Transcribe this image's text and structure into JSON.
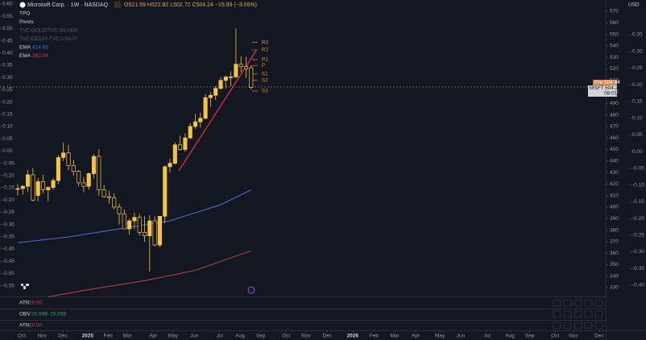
{
  "header": {
    "symbol": "Microsoft Corp. · 1W · NASDAQ",
    "ohlc": "O521.59 H522.82 L502.72 C504.24 −15.93 (−3.06%)",
    "currency": "USD"
  },
  "legend": [
    {
      "label": "TPO"
    },
    {
      "label": "Pivots"
    },
    {
      "label": "TVC:GOLD/TVC:SILVER"
    },
    {
      "label": "TVC:DE10Y-TVC:US10Y"
    },
    {
      "label": "EMA",
      "value": "414.93",
      "color": "#4f6fe0"
    },
    {
      "label": "EMA",
      "value": "362.04",
      "color": "#c8404f"
    }
  ],
  "price_tags": {
    "pre": "Pre 504.84",
    "symbol": "MSFT",
    "last": "504.24",
    "countdown": "08:01:07"
  },
  "panes": [
    {
      "label": "ATR",
      "value": "20.50"
    },
    {
      "label": "OBV",
      "value": "35.59B",
      "value2": "25.05B"
    },
    {
      "label": "ATR",
      "value": "20.50"
    }
  ],
  "chart_data": {
    "type": "candlestick",
    "up_color": "#f5c542",
    "down_color": "#f5c542",
    "ohlc": [
      [
        416,
        420,
        410,
        416
      ],
      [
        416,
        419,
        411,
        418
      ],
      [
        418,
        432,
        413,
        428
      ],
      [
        428,
        434,
        405,
        406
      ],
      [
        410,
        425,
        405,
        422
      ],
      [
        422,
        428,
        412,
        415
      ],
      [
        415,
        418,
        405,
        417
      ],
      [
        417,
        425,
        415,
        423
      ],
      [
        423,
        445,
        420,
        443
      ],
      [
        443,
        456,
        440,
        447
      ],
      [
        447,
        454,
        432,
        436
      ],
      [
        436,
        441,
        427,
        431
      ],
      [
        431,
        432,
        418,
        421
      ],
      [
        421,
        426,
        413,
        418
      ],
      [
        418,
        430,
        415,
        429
      ],
      [
        429,
        446,
        425,
        444
      ],
      [
        444,
        450,
        410,
        415
      ],
      [
        415,
        419,
        408,
        409
      ],
      [
        409,
        414,
        403,
        408
      ],
      [
        408,
        412,
        398,
        400
      ],
      [
        400,
        403,
        385,
        394
      ],
      [
        394,
        398,
        381,
        381
      ],
      [
        381,
        390,
        376,
        388
      ],
      [
        388,
        395,
        381,
        391
      ],
      [
        391,
        394,
        375,
        378
      ],
      [
        378,
        392,
        370,
        375
      ],
      [
        375,
        393,
        344,
        388
      ],
      [
        388,
        392,
        366,
        367
      ],
      [
        367,
        392,
        365,
        392
      ],
      [
        392,
        436,
        386,
        435
      ],
      [
        435,
        442,
        430,
        438
      ],
      [
        438,
        456,
        437,
        454
      ],
      [
        454,
        462,
        449,
        450
      ],
      [
        450,
        464,
        448,
        460
      ],
      [
        460,
        473,
        459,
        470
      ],
      [
        470,
        481,
        468,
        474
      ],
      [
        474,
        482,
        469,
        477
      ],
      [
        477,
        498,
        476,
        495
      ],
      [
        495,
        500,
        487,
        497
      ],
      [
        497,
        505,
        493,
        503
      ],
      [
        503,
        513,
        502,
        510
      ],
      [
        510,
        514,
        503,
        513
      ],
      [
        513,
        518,
        505,
        513
      ],
      [
        513,
        555,
        512,
        524
      ],
      [
        524,
        531,
        517,
        522
      ],
      [
        522,
        530,
        512,
        520
      ],
      [
        521,
        523,
        502,
        504
      ]
    ],
    "lines": [
      {
        "color": "#4f6fe0",
        "x": [
          0,
          10,
          20,
          30,
          40,
          46
        ],
        "values": [
          369,
          374,
          381,
          388,
          402,
          414.93
        ]
      },
      {
        "color": "#c8404f",
        "x": [
          6,
          15,
          25,
          35,
          46
        ],
        "values": [
          322,
          329,
          336,
          345,
          362.04
        ]
      }
    ],
    "pivots": {
      "color": "#e0892e",
      "x": 46,
      "labels": [
        "R3",
        "R2",
        "R1",
        "P",
        "S1",
        "S2",
        "S3"
      ],
      "values": [
        543,
        536.4,
        528,
        523,
        515.5,
        510,
        500.8
      ]
    },
    "last_price": 504.24,
    "xlim": [
      -3.49,
      115.87
    ],
    "xticks": [
      {
        "value": 0.8,
        "label": "Oct"
      },
      {
        "value": 4.8,
        "label": "Nov"
      },
      {
        "value": 8.9,
        "label": "Dec"
      },
      {
        "value": 13.8,
        "label": "2025"
      },
      {
        "value": 17.8,
        "label": "Feb"
      },
      {
        "value": 21.6,
        "label": "Mar"
      },
      {
        "value": 26.7,
        "label": "Apr"
      },
      {
        "value": 30.6,
        "label": "May"
      },
      {
        "value": 34.8,
        "label": "Jun"
      },
      {
        "value": 39.8,
        "label": "Jul"
      },
      {
        "value": 43.8,
        "label": "Aug"
      },
      {
        "value": 47.9,
        "label": "Sep"
      },
      {
        "value": 52.9,
        "label": "Oct"
      },
      {
        "value": 56.8,
        "label": "Nov"
      },
      {
        "value": 61,
        "label": "Dec"
      },
      {
        "value": 66,
        "label": "2026"
      },
      {
        "value": 70.2,
        "label": "Feb"
      },
      {
        "value": 74.3,
        "label": "Mar"
      },
      {
        "value": 78.4,
        "label": "Apr"
      },
      {
        "value": 83.2,
        "label": "May"
      },
      {
        "value": 87.3,
        "label": "Jun"
      },
      {
        "value": 92.5,
        "label": "Jul"
      },
      {
        "value": 97,
        "label": "Aug"
      },
      {
        "value": 100.9,
        "label": "Sep"
      },
      {
        "value": 105.9,
        "label": "Oct"
      },
      {
        "value": 109.5,
        "label": "Nov"
      },
      {
        "value": 114.6,
        "label": "Dec"
      }
    ],
    "ylim": [
      322.3,
      579.8
    ],
    "yticks": [
      330,
      340,
      350,
      360,
      370,
      380,
      390,
      400,
      410,
      420,
      430,
      440,
      450,
      460,
      470,
      480,
      490,
      500,
      510,
      520,
      530,
      540,
      550,
      560,
      570
    ],
    "y2lim": [
      -0.594,
      0.6164
    ],
    "y2ticks": [
      {
        "value": 0.6,
        "label": "0.60"
      },
      {
        "value": 0.55,
        "label": "0.55"
      },
      {
        "value": 0.5,
        "label": "0.50"
      },
      {
        "value": 0.45,
        "label": "0.45"
      },
      {
        "value": 0.4,
        "label": "0.40"
      },
      {
        "value": 0.35,
        "label": "0.35"
      },
      {
        "value": 0.3,
        "label": "0.30"
      },
      {
        "value": 0.25,
        "label": "0.25"
      },
      {
        "value": 0.2,
        "label": "0.20"
      },
      {
        "value": 0.15,
        "label": "0.15"
      },
      {
        "value": 0.1,
        "label": "0.10"
      },
      {
        "value": 0.05,
        "label": "0.05"
      },
      {
        "value": 0,
        "label": "0.00"
      },
      {
        "value": -0.05,
        "label": "-0.05"
      },
      {
        "value": -0.1,
        "label": "-0.10"
      },
      {
        "value": -0.15,
        "label": "-0.15"
      },
      {
        "value": -0.2,
        "label": "-0.20"
      },
      {
        "value": -0.25,
        "label": "-0.25"
      },
      {
        "value": -0.3,
        "label": "-0.30"
      },
      {
        "value": -0.35,
        "label": "-0.35"
      },
      {
        "value": -0.4,
        "label": "-0.40"
      },
      {
        "value": -0.45,
        "label": "-0.45"
      },
      {
        "value": -0.5,
        "label": "-0.50"
      },
      {
        "value": -0.55,
        "label": "-0.55"
      }
    ],
    "y3lim": [
      -0.4338,
      0.4537
    ],
    "y3ticks": [
      {
        "value": 0.35,
        "label": "0.35"
      },
      {
        "value": 0.3,
        "label": "0.30"
      },
      {
        "value": 0.25,
        "label": "0.25"
      },
      {
        "value": 0.2,
        "label": "0.20"
      },
      {
        "value": 0.15,
        "label": "0.15"
      },
      {
        "value": 0.1,
        "label": "0.10"
      },
      {
        "value": 0.05,
        "label": "0.05"
      },
      {
        "value": 0,
        "label": "0.00"
      },
      {
        "value": -0.05,
        "label": "-0.05"
      },
      {
        "value": -0.1,
        "label": "-0.10"
      },
      {
        "value": -0.15,
        "label": "-0.15"
      },
      {
        "value": -0.2,
        "label": "-0.20"
      },
      {
        "value": -0.25,
        "label": "-0.25"
      },
      {
        "value": -0.3,
        "label": "-0.30"
      },
      {
        "value": -0.35,
        "label": "-0.35"
      },
      {
        "value": -0.4,
        "label": "-0.40"
      }
    ]
  }
}
